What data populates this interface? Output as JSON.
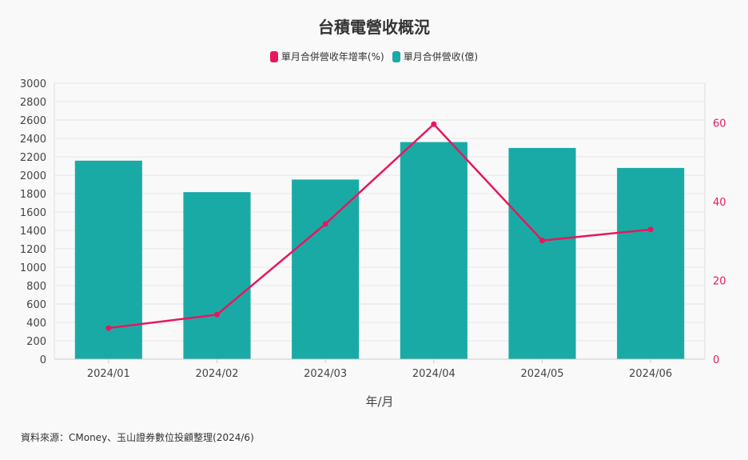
{
  "source_note": "資料來源：CMoney、玉山證券數位投顧整理(2024/6)",
  "chart_data": {
    "type": "bar",
    "title": "台積電營收概況",
    "xlabel": "年/月",
    "ylabel": "",
    "y2label": "",
    "categories": [
      "2024/01",
      "2024/02",
      "2024/03",
      "2024/04",
      "2024/05",
      "2024/06"
    ],
    "ylim": [
      0,
      3000
    ],
    "yticks": [
      0,
      200,
      400,
      600,
      800,
      1000,
      1200,
      1400,
      1600,
      1800,
      2000,
      2200,
      2400,
      2600,
      2800,
      3000
    ],
    "y2lim": [
      0,
      70
    ],
    "y2ticks": [
      0,
      20,
      40,
      60
    ],
    "legend_position": "top-center",
    "grid": true,
    "series": [
      {
        "name": "單月合併營收年增率(%)",
        "type": "line",
        "axis": "right",
        "color": "#e8175d",
        "values": [
          7.9,
          11.3,
          34.3,
          59.6,
          30.1,
          32.9
        ]
      },
      {
        "name": "單月合併營收(億)",
        "type": "bar",
        "axis": "left",
        "color": "#1aaaa6",
        "values": [
          2158,
          1816,
          1953,
          2360,
          2296,
          2079
        ]
      }
    ]
  }
}
